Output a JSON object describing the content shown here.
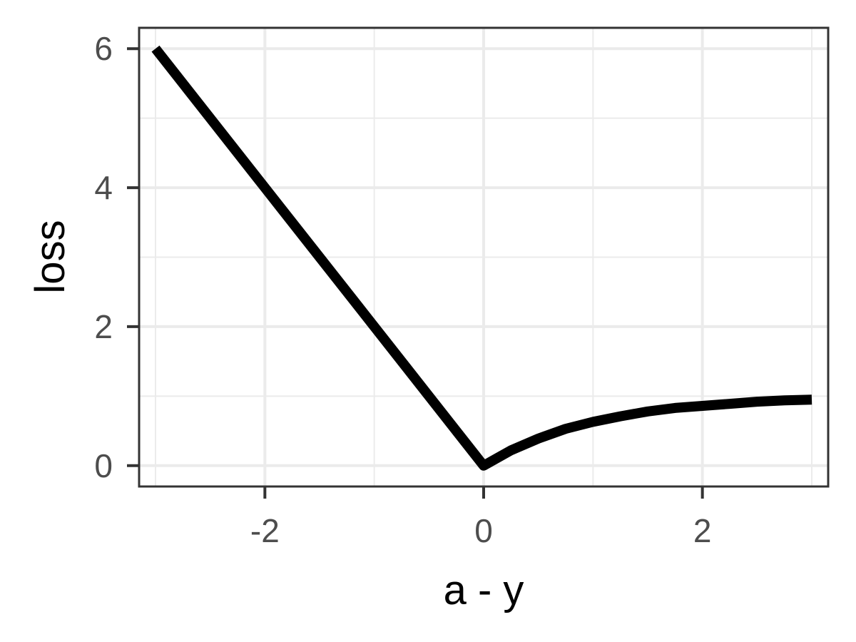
{
  "chart_data": {
    "type": "line",
    "xlabel": "a - y",
    "ylabel": "loss",
    "xlim": [
      -3.15,
      3.15
    ],
    "ylim": [
      -0.3,
      6.3
    ],
    "x_ticks": [
      -2,
      0,
      2
    ],
    "x_tick_labels": [
      "-2",
      "0",
      "2"
    ],
    "y_ticks": [
      0,
      2,
      4,
      6
    ],
    "y_tick_labels": [
      "0",
      "2",
      "4",
      "6"
    ],
    "x_minor_gridlines": [
      -3,
      -1,
      1,
      3
    ],
    "y_minor_gridlines": [
      1,
      3,
      5
    ],
    "grid": true,
    "series": [
      {
        "color": "#000000",
        "x": [
          -3,
          -2.5,
          -2,
          -1.5,
          -1,
          -0.5,
          0,
          0.25,
          0.5,
          0.75,
          1,
          1.25,
          1.5,
          1.75,
          2,
          2.25,
          2.5,
          2.75,
          3
        ],
        "y": [
          6,
          5,
          4,
          3,
          2,
          1,
          0,
          0.22,
          0.39,
          0.53,
          0.63,
          0.71,
          0.78,
          0.83,
          0.86,
          0.89,
          0.92,
          0.94,
          0.95
        ]
      }
    ]
  }
}
